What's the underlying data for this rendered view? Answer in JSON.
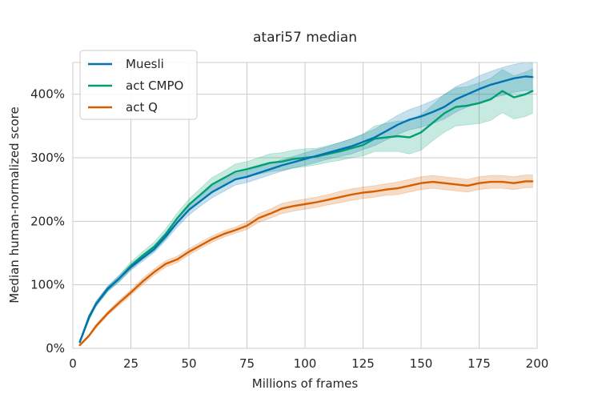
{
  "chart_data": {
    "type": "line",
    "title": "atari57 median",
    "xlabel": "Millions of frames",
    "ylabel": "Median human-normalized score",
    "xlim": [
      0,
      200
    ],
    "ylim": [
      0,
      4.5
    ],
    "xticks": [
      0,
      25,
      50,
      75,
      100,
      125,
      150,
      175,
      200
    ],
    "xtick_labels": [
      "0",
      "25",
      "50",
      "75",
      "100",
      "125",
      "150",
      "175",
      "200"
    ],
    "yticks": [
      0,
      1,
      2,
      3,
      4
    ],
    "ytick_labels": [
      "0%",
      "100%",
      "200%",
      "300%",
      "400%"
    ],
    "grid": true,
    "legend_position": "top-left",
    "series": [
      {
        "name": "Muesli",
        "color": "#0173b2",
        "x": [
          3,
          7,
          10,
          15,
          20,
          25,
          30,
          35,
          40,
          45,
          50,
          55,
          60,
          65,
          70,
          75,
          80,
          85,
          90,
          95,
          100,
          105,
          110,
          115,
          120,
          125,
          130,
          135,
          140,
          145,
          150,
          155,
          160,
          165,
          170,
          175,
          180,
          185,
          190,
          195,
          198
        ],
        "y": [
          0.1,
          0.5,
          0.7,
          0.94,
          1.1,
          1.28,
          1.42,
          1.56,
          1.76,
          1.98,
          2.18,
          2.32,
          2.46,
          2.56,
          2.66,
          2.7,
          2.76,
          2.82,
          2.88,
          2.93,
          2.98,
          3.03,
          3.08,
          3.13,
          3.18,
          3.25,
          3.32,
          3.42,
          3.52,
          3.6,
          3.65,
          3.72,
          3.8,
          3.92,
          4.0,
          4.08,
          4.15,
          4.2,
          4.25,
          4.28,
          4.27
        ],
        "band": [
          0.02,
          0.03,
          0.04,
          0.04,
          0.05,
          0.05,
          0.05,
          0.05,
          0.06,
          0.07,
          0.08,
          0.08,
          0.09,
          0.09,
          0.09,
          0.09,
          0.09,
          0.09,
          0.09,
          0.09,
          0.1,
          0.1,
          0.1,
          0.11,
          0.12,
          0.12,
          0.13,
          0.14,
          0.15,
          0.16,
          0.17,
          0.18,
          0.19,
          0.2,
          0.2,
          0.21,
          0.21,
          0.22,
          0.22,
          0.22,
          0.22
        ]
      },
      {
        "name": "act CMPO",
        "color": "#029e73",
        "x": [
          3,
          7,
          10,
          15,
          20,
          25,
          30,
          35,
          40,
          45,
          50,
          55,
          60,
          65,
          70,
          75,
          80,
          85,
          90,
          95,
          100,
          105,
          110,
          115,
          120,
          125,
          130,
          135,
          140,
          145,
          150,
          155,
          160,
          165,
          170,
          175,
          180,
          185,
          190,
          195,
          198
        ],
        "y": [
          0.1,
          0.48,
          0.7,
          0.93,
          1.1,
          1.3,
          1.46,
          1.6,
          1.8,
          2.05,
          2.26,
          2.42,
          2.58,
          2.68,
          2.78,
          2.82,
          2.87,
          2.92,
          2.94,
          2.98,
          3.0,
          3.02,
          3.06,
          3.1,
          3.15,
          3.2,
          3.3,
          3.32,
          3.34,
          3.32,
          3.4,
          3.55,
          3.7,
          3.8,
          3.82,
          3.86,
          3.92,
          4.05,
          3.95,
          4.0,
          4.05
        ],
        "band": [
          0.02,
          0.03,
          0.04,
          0.04,
          0.05,
          0.06,
          0.06,
          0.07,
          0.08,
          0.08,
          0.09,
          0.1,
          0.11,
          0.11,
          0.12,
          0.12,
          0.13,
          0.14,
          0.14,
          0.14,
          0.14,
          0.13,
          0.13,
          0.14,
          0.15,
          0.17,
          0.2,
          0.22,
          0.24,
          0.26,
          0.28,
          0.28,
          0.3,
          0.3,
          0.3,
          0.32,
          0.33,
          0.34,
          0.34,
          0.35,
          0.35
        ]
      },
      {
        "name": "act Q",
        "color": "#d55e00",
        "x": [
          3,
          7,
          10,
          15,
          20,
          25,
          30,
          35,
          40,
          45,
          50,
          55,
          60,
          65,
          70,
          75,
          80,
          85,
          90,
          95,
          100,
          105,
          110,
          115,
          120,
          125,
          130,
          135,
          140,
          145,
          150,
          155,
          160,
          165,
          170,
          175,
          180,
          185,
          190,
          195,
          198
        ],
        "y": [
          0.05,
          0.2,
          0.35,
          0.55,
          0.72,
          0.88,
          1.05,
          1.2,
          1.33,
          1.4,
          1.52,
          1.62,
          1.72,
          1.8,
          1.86,
          1.93,
          2.05,
          2.12,
          2.2,
          2.24,
          2.27,
          2.3,
          2.34,
          2.38,
          2.42,
          2.45,
          2.47,
          2.5,
          2.52,
          2.56,
          2.6,
          2.62,
          2.6,
          2.58,
          2.56,
          2.6,
          2.62,
          2.62,
          2.6,
          2.63,
          2.63
        ],
        "band": [
          0.01,
          0.02,
          0.03,
          0.03,
          0.04,
          0.04,
          0.05,
          0.05,
          0.05,
          0.05,
          0.05,
          0.05,
          0.05,
          0.05,
          0.05,
          0.06,
          0.07,
          0.07,
          0.08,
          0.08,
          0.08,
          0.08,
          0.08,
          0.09,
          0.09,
          0.09,
          0.09,
          0.09,
          0.1,
          0.1,
          0.1,
          0.1,
          0.1,
          0.1,
          0.1,
          0.1,
          0.1,
          0.1,
          0.1,
          0.1,
          0.1
        ]
      }
    ]
  }
}
